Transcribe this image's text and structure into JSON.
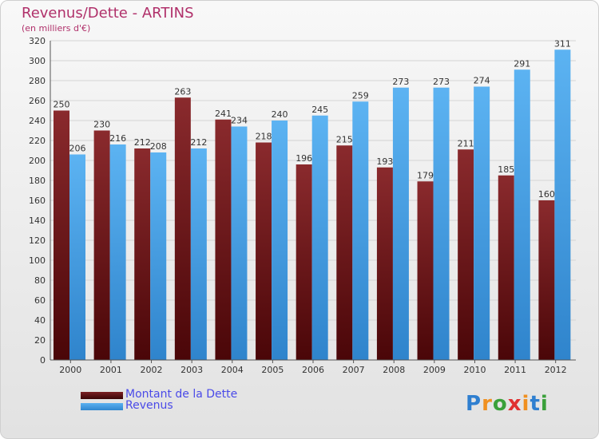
{
  "header": {
    "title": "Revenus/Dette - ARTINS",
    "subtitle": "(en milliers d'€)"
  },
  "chart_data": {
    "type": "bar",
    "categories": [
      "2000",
      "2001",
      "2002",
      "2003",
      "2004",
      "2005",
      "2006",
      "2007",
      "2008",
      "2009",
      "2010",
      "2011",
      "2012"
    ],
    "series": [
      {
        "name": "Montant de la Dette",
        "values": [
          250,
          230,
          212,
          263,
          241,
          218,
          196,
          215,
          193,
          179,
          211,
          185,
          160
        ],
        "color": "#7a1f22"
      },
      {
        "name": "Revenus",
        "values": [
          206,
          216,
          208,
          212,
          234,
          240,
          245,
          259,
          273,
          273,
          274,
          291,
          311
        ],
        "color": "#4aa3e6"
      }
    ],
    "ylim": [
      0,
      320
    ],
    "yticks": [
      0,
      20,
      40,
      60,
      80,
      100,
      120,
      140,
      160,
      180,
      200,
      220,
      240,
      260,
      280,
      300,
      320
    ],
    "grid": true,
    "legend_position": "bottom-left",
    "data_labels": true
  },
  "legend": {
    "items": [
      {
        "label": "Montant de la Dette",
        "color": "#5a0d0f"
      },
      {
        "label": "Revenus",
        "color": "#3d97e0"
      }
    ]
  },
  "logo": {
    "letters": [
      "P",
      "r",
      "o",
      "x",
      "i",
      "t",
      "i"
    ],
    "colors": [
      "#2f7fd0",
      "#f09020",
      "#3aa03a",
      "#e03030",
      "#f09020",
      "#2f7fd0",
      "#3aa03a"
    ]
  }
}
